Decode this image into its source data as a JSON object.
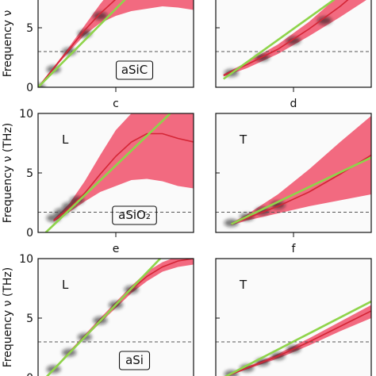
{
  "chart_data": [
    {
      "type": "line",
      "panel": "L, aSiC",
      "ylabel": "Frequency ν",
      "ylim": [
        0,
        10
      ],
      "yticks": [
        "0",
        "5"
      ],
      "panel_label": "",
      "mode_label": "",
      "material_label": "aSiC",
      "dashed_level": 3,
      "series": [
        {
          "x": [
            0,
            0.1,
            0.2,
            0.3,
            0.4,
            0.5,
            0.6,
            0.7,
            0.8,
            0.9,
            1.0
          ],
          "values": [
            0,
            1.6,
            3.2,
            4.8,
            6.2,
            7.4,
            8.2,
            8.8,
            9.0,
            9.1,
            9.0
          ]
        },
        {
          "x": [
            0,
            0.85
          ],
          "values": [
            0,
            11.2
          ]
        }
      ],
      "band": {
        "x": [
          0,
          0.2,
          0.3,
          0.4,
          0.5,
          0.6,
          0.7,
          0.8,
          0.9,
          1.0
        ],
        "lower": [
          0,
          3.0,
          4.4,
          5.4,
          6.0,
          6.4,
          6.6,
          6.8,
          6.7,
          6.5
        ],
        "upper": [
          0,
          3.4,
          5.2,
          7.0,
          8.6,
          9.8,
          10.5,
          10.8,
          10.8,
          10.7
        ]
      },
      "density": {
        "x": [
          0,
          0.1,
          0.2,
          0.3,
          0.4
        ],
        "values": [
          0,
          1.5,
          3.0,
          4.5,
          6.0
        ]
      }
    },
    {
      "type": "line",
      "panel": "T, aSiC",
      "ylim": [
        0,
        10
      ],
      "panel_label": "",
      "mode_label": "",
      "dashed_level": 3,
      "series": [
        {
          "x": [
            0.05,
            0.2,
            0.4,
            0.6,
            0.8,
            1.0
          ],
          "values": [
            1.0,
            1.9,
            3.2,
            4.9,
            6.8,
            9.0
          ]
        },
        {
          "x": [
            0.05,
            1.0
          ],
          "values": [
            0.7,
            9.6
          ]
        }
      ],
      "band": {
        "x": [
          0.05,
          0.2,
          0.4,
          0.6,
          0.8,
          1.0
        ],
        "lower": [
          0.9,
          1.6,
          2.8,
          4.3,
          5.9,
          7.6
        ],
        "upper": [
          1.1,
          2.1,
          3.6,
          5.5,
          7.8,
          10.4
        ]
      },
      "density": {
        "x": [
          0.1,
          0.3,
          0.5,
          0.7
        ],
        "values": [
          1.2,
          2.5,
          3.9,
          5.6
        ]
      }
    },
    {
      "type": "line",
      "panel": "L, aSiO2",
      "ylabel": "Frequency ν (THz)",
      "ylim": [
        0,
        10
      ],
      "yticks": [
        "0",
        "5",
        "10"
      ],
      "panel_label": "c",
      "mode_label": "L",
      "material_label": "aSiO₂",
      "dashed_level": 1.7,
      "series": [
        {
          "x": [
            0.1,
            0.2,
            0.3,
            0.4,
            0.5,
            0.6,
            0.7,
            0.8,
            0.9,
            1.0
          ],
          "values": [
            1.0,
            2.0,
            3.3,
            4.9,
            6.4,
            7.6,
            8.3,
            8.3,
            7.9,
            7.6
          ]
        },
        {
          "x": [
            0.05,
            0.85
          ],
          "values": [
            0,
            10
          ]
        }
      ],
      "band": {
        "x": [
          0.1,
          0.2,
          0.3,
          0.4,
          0.5,
          0.6,
          0.7,
          0.8,
          0.9,
          1.0
        ],
        "lower": [
          0.9,
          1.7,
          2.6,
          3.4,
          3.9,
          4.4,
          4.5,
          4.3,
          3.9,
          3.7
        ],
        "upper": [
          1.1,
          2.4,
          4.3,
          6.5,
          8.6,
          10.0,
          10.0,
          10.0,
          10.0,
          10.0
        ]
      },
      "density": {
        "x": [
          0.1,
          0.15,
          0.2,
          0.25
        ],
        "values": [
          1.2,
          1.7,
          2.2,
          2.7
        ]
      }
    },
    {
      "type": "line",
      "panel": "T, aSiO2",
      "ylim": [
        0,
        10
      ],
      "panel_label": "d",
      "mode_label": "T",
      "dashed_level": 1.7,
      "series": [
        {
          "x": [
            0.1,
            0.2,
            0.4,
            0.6,
            0.8,
            1.0
          ],
          "values": [
            0.7,
            1.2,
            2.2,
            3.4,
            4.9,
            6.5
          ]
        },
        {
          "x": [
            0.1,
            1.0
          ],
          "values": [
            0.7,
            6.3
          ]
        }
      ],
      "band": {
        "x": [
          0.1,
          0.2,
          0.4,
          0.6,
          0.8,
          1.0
        ],
        "lower": [
          0.6,
          1.0,
          1.6,
          2.2,
          2.7,
          3.2
        ],
        "upper": [
          0.8,
          1.5,
          3.2,
          5.3,
          7.6,
          9.8
        ]
      },
      "density": {
        "x": [
          0.1,
          0.2,
          0.3,
          0.4
        ],
        "values": [
          0.8,
          1.3,
          1.8,
          2.3
        ]
      }
    },
    {
      "type": "line",
      "panel": "L, aSi",
      "ylabel": "Frequency ν (THz)",
      "ylim": [
        0,
        10
      ],
      "yticks": [
        "0",
        "5",
        "10"
      ],
      "panel_label": "e",
      "mode_label": "L",
      "material_label": "aSi",
      "dashed_level": 3,
      "series": [
        {
          "x": [
            0.05,
            0.2,
            0.4,
            0.6,
            0.7,
            0.8,
            0.9,
            1.0
          ],
          "values": [
            0,
            2.1,
            4.8,
            7.4,
            8.5,
            9.3,
            9.8,
            10.0
          ]
        },
        {
          "x": [
            0.05,
            0.8
          ],
          "values": [
            0,
            10.2
          ]
        }
      ],
      "band": {
        "x": [
          0.05,
          0.2,
          0.4,
          0.6,
          0.7,
          0.8,
          0.9,
          1.0
        ],
        "lower": [
          0,
          2.0,
          4.6,
          7.1,
          8.1,
          8.9,
          9.3,
          9.5
        ],
        "upper": [
          0,
          2.2,
          5.0,
          7.7,
          8.9,
          9.7,
          10.2,
          10.5
        ]
      },
      "density": {
        "x": [
          0.1,
          0.2,
          0.3,
          0.4,
          0.5,
          0.6
        ],
        "values": [
          0.7,
          2.1,
          3.4,
          4.8,
          6.1,
          7.4
        ]
      }
    },
    {
      "type": "line",
      "panel": "T, aSi",
      "ylim": [
        0,
        10
      ],
      "panel_label": "f",
      "mode_label": "T",
      "dashed_level": 3,
      "series": [
        {
          "x": [
            0.05,
            0.2,
            0.4,
            0.6,
            0.8,
            1.0
          ],
          "values": [
            0,
            0.8,
            1.8,
            3.0,
            4.3,
            5.6
          ]
        },
        {
          "x": [
            0.05,
            1.0
          ],
          "values": [
            0,
            6.4
          ]
        }
      ],
      "band": {
        "x": [
          0.05,
          0.2,
          0.4,
          0.6,
          0.8,
          1.0
        ],
        "lower": [
          0,
          0.7,
          1.6,
          2.7,
          3.9,
          5.0
        ],
        "upper": [
          0,
          0.9,
          2.0,
          3.3,
          4.7,
          6.1
        ]
      },
      "density": {
        "x": [
          0.1,
          0.2,
          0.3,
          0.4,
          0.5
        ],
        "values": [
          0.3,
          0.8,
          1.3,
          1.8,
          2.4
        ]
      }
    }
  ],
  "colors": {
    "band": "#f0506a",
    "band_line": "#d42535",
    "fit_line": "#8ed44a",
    "density": "#1a1a1a",
    "dashed": "#555555",
    "axis": "#111111"
  }
}
